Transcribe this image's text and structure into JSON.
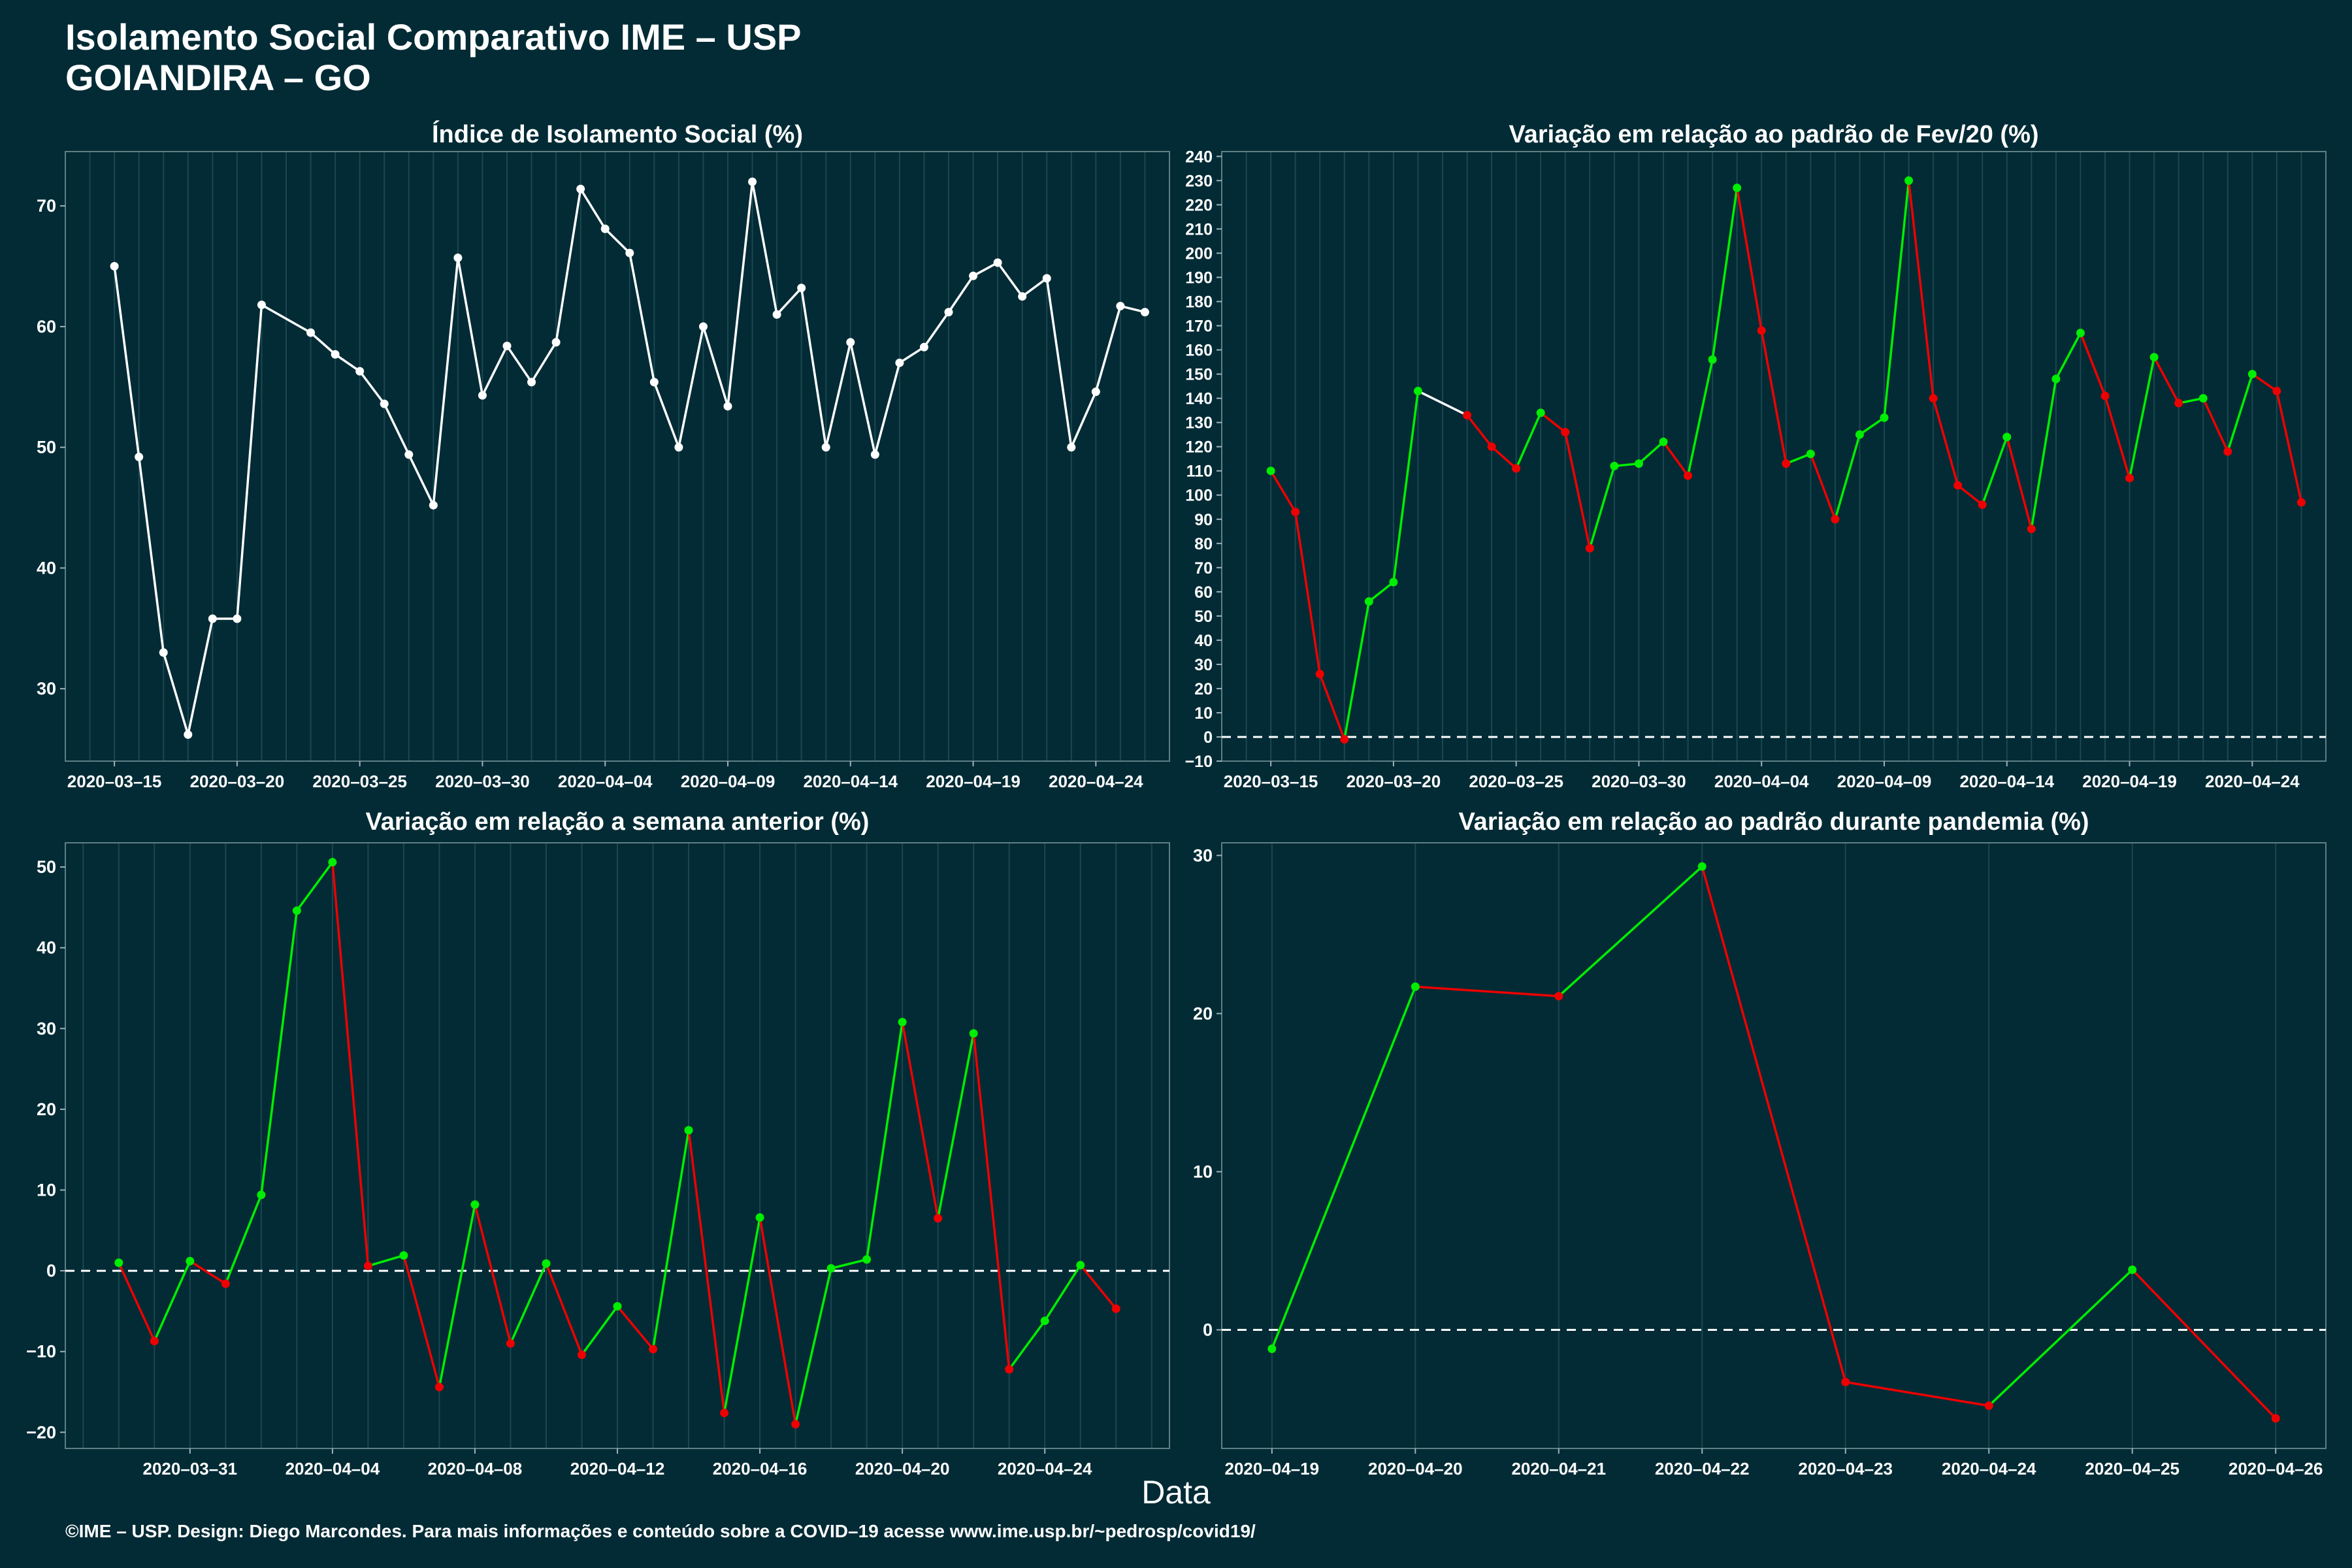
{
  "title_line1": "Isolamento Social Comparativo IME – USP",
  "title_line2": "GOIANDIRA – GO",
  "x_caption": "Data",
  "footer": "©IME – USP. Design: Diego Marcondes. Para mais informações e conteúdo sobre a COVID–19 acesse www.ime.usp.br/~pedrosp/covid19/",
  "colors": {
    "background": "#022b35",
    "line_neutral": "#ffffff",
    "increase": "#00ee00",
    "decrease": "#ee0000",
    "reference": "#ffffff"
  },
  "chart_data": [
    {
      "type": "line",
      "title": "Índice de Isolamento Social (%)",
      "color_mode": "white",
      "x_start": "2020-03-15",
      "x_labels": [
        "2020–03–15",
        "2020–03–20",
        "2020–03–25",
        "2020–03–30",
        "2020–04–04",
        "2020–04–09",
        "2020–04–14",
        "2020–04–19",
        "2020–04–24"
      ],
      "x_label_days": [
        0,
        5,
        10,
        15,
        20,
        25,
        30,
        35,
        40
      ],
      "xlim": [
        -2,
        43
      ],
      "ylim": [
        24,
        74.5
      ],
      "yticks": [
        30,
        40,
        50,
        60,
        70
      ],
      "reference_zero": false,
      "points": [
        [
          0,
          65
        ],
        [
          1,
          49.2
        ],
        [
          2,
          33
        ],
        [
          3,
          26.2
        ],
        [
          4,
          35.8
        ],
        [
          5,
          35.8
        ],
        [
          6,
          61.8
        ],
        [
          8,
          59.5
        ],
        [
          9,
          57.7
        ],
        [
          10,
          56.3
        ],
        [
          11,
          53.6
        ],
        [
          12,
          49.4
        ],
        [
          13,
          45.2
        ],
        [
          14,
          65.7
        ],
        [
          15,
          54.3
        ],
        [
          16,
          58.4
        ],
        [
          17,
          55.4
        ],
        [
          18,
          58.7
        ],
        [
          19,
          71.4
        ],
        [
          20,
          68.1
        ],
        [
          21,
          66.1
        ],
        [
          22,
          55.4
        ],
        [
          23,
          50
        ],
        [
          24,
          60
        ],
        [
          25,
          53.4
        ],
        [
          26,
          72
        ],
        [
          27,
          61
        ],
        [
          28,
          63.2
        ],
        [
          29,
          50
        ],
        [
          30,
          58.7
        ],
        [
          31,
          49.4
        ],
        [
          32,
          57
        ],
        [
          33,
          58.3
        ],
        [
          34,
          61.2
        ],
        [
          35,
          64.2
        ],
        [
          36,
          65.3
        ],
        [
          37,
          62.5
        ],
        [
          38,
          64
        ],
        [
          39,
          50
        ],
        [
          40,
          54.6
        ],
        [
          41,
          61.7
        ],
        [
          42,
          61.2
        ]
      ]
    },
    {
      "type": "line",
      "title": "Variação em relação ao padrão de Fev/20 (%)",
      "color_mode": "sign",
      "x_start": "2020-03-15",
      "x_labels": [
        "2020–03–15",
        "2020–03–20",
        "2020–03–25",
        "2020–03–30",
        "2020–04–04",
        "2020–04–09",
        "2020–04–14",
        "2020–04–19",
        "2020–04–24"
      ],
      "x_label_days": [
        0,
        5,
        10,
        15,
        20,
        25,
        30,
        35,
        40
      ],
      "xlim": [
        -2,
        43
      ],
      "ylim": [
        -10,
        242
      ],
      "yticks": [
        -10,
        0,
        10,
        20,
        30,
        40,
        50,
        60,
        70,
        80,
        90,
        100,
        110,
        120,
        130,
        140,
        150,
        160,
        170,
        180,
        190,
        200,
        210,
        220,
        230,
        240
      ],
      "reference_zero": true,
      "points": [
        [
          0,
          110
        ],
        [
          1,
          93
        ],
        [
          2,
          26
        ],
        [
          3,
          -1
        ],
        [
          4,
          56
        ],
        [
          5,
          64
        ],
        [
          6,
          143
        ],
        [
          8,
          133
        ],
        [
          9,
          120
        ],
        [
          10,
          111
        ],
        [
          11,
          134
        ],
        [
          12,
          126
        ],
        [
          13,
          78
        ],
        [
          14,
          112
        ],
        [
          15,
          113
        ],
        [
          16,
          122
        ],
        [
          17,
          108
        ],
        [
          18,
          156
        ],
        [
          19,
          227
        ],
        [
          20,
          168
        ],
        [
          21,
          113
        ],
        [
          22,
          117
        ],
        [
          23,
          90
        ],
        [
          24,
          125
        ],
        [
          25,
          132
        ],
        [
          26,
          230
        ],
        [
          27,
          140
        ],
        [
          28,
          104
        ],
        [
          29,
          96
        ],
        [
          30,
          124
        ],
        [
          31,
          86
        ],
        [
          32,
          148
        ],
        [
          33,
          167
        ],
        [
          34,
          141
        ],
        [
          35,
          107
        ],
        [
          36,
          157
        ],
        [
          37,
          138
        ],
        [
          38,
          140
        ],
        [
          39,
          118
        ],
        [
          40,
          150
        ],
        [
          41,
          143
        ],
        [
          42,
          97
        ]
      ]
    },
    {
      "type": "line",
      "title": "Variação em relação a semana anterior (%)",
      "color_mode": "sign",
      "x_start": "2020-03-29",
      "x_labels": [
        "2020–03–31",
        "2020–04–04",
        "2020–04–08",
        "2020–04–12",
        "2020–04–16",
        "2020–04–20",
        "2020–04–24"
      ],
      "x_label_days": [
        2,
        6,
        10,
        14,
        18,
        22,
        26
      ],
      "xlim": [
        -1.5,
        29.5
      ],
      "ylim": [
        -22,
        53
      ],
      "yticks": [
        -20,
        -10,
        0,
        10,
        20,
        30,
        40,
        50
      ],
      "reference_zero": true,
      "points": [
        [
          0,
          1
        ],
        [
          1,
          -8.7
        ],
        [
          2,
          1.2
        ],
        [
          3,
          -1.6
        ],
        [
          4,
          9.4
        ],
        [
          5,
          44.6
        ],
        [
          6,
          50.6
        ],
        [
          7,
          0.6
        ],
        [
          8,
          1.9
        ],
        [
          9,
          -14.4
        ],
        [
          10,
          8.2
        ],
        [
          11,
          -9
        ],
        [
          12,
          0.9
        ],
        [
          13,
          -10.4
        ],
        [
          14,
          -4.4
        ],
        [
          15,
          -9.7
        ],
        [
          16,
          17.4
        ],
        [
          17,
          -17.6
        ],
        [
          18,
          6.6
        ],
        [
          19,
          -19
        ],
        [
          20,
          0.3
        ],
        [
          21,
          1.4
        ],
        [
          22,
          30.8
        ],
        [
          23,
          6.5
        ],
        [
          24,
          29.4
        ],
        [
          25,
          -12.2
        ],
        [
          26,
          -6.2
        ],
        [
          27,
          0.7
        ],
        [
          28,
          -4.7
        ]
      ]
    },
    {
      "type": "line",
      "title": "Variação em relação ao padrão durante pandemia (%)",
      "color_mode": "sign",
      "x_start": "2020-04-19",
      "x_labels": [
        "2020–04–19",
        "2020–04–20",
        "2020–04–21",
        "2020–04–22",
        "2020–04–23",
        "2020–04–24",
        "2020–04–25",
        "2020–04–26"
      ],
      "x_label_days": [
        0,
        1,
        2,
        3,
        4,
        5,
        6,
        7
      ],
      "xlim": [
        -0.35,
        7.35
      ],
      "ylim": [
        -7.5,
        30.8
      ],
      "yticks": [
        0,
        10,
        20,
        30
      ],
      "reference_zero": true,
      "points": [
        [
          0,
          -1.2
        ],
        [
          1,
          21.7
        ],
        [
          2,
          21.1
        ],
        [
          3,
          29.3
        ],
        [
          4,
          -3.3
        ],
        [
          5,
          -4.8
        ],
        [
          6,
          3.8
        ],
        [
          7,
          -5.6
        ]
      ]
    }
  ]
}
